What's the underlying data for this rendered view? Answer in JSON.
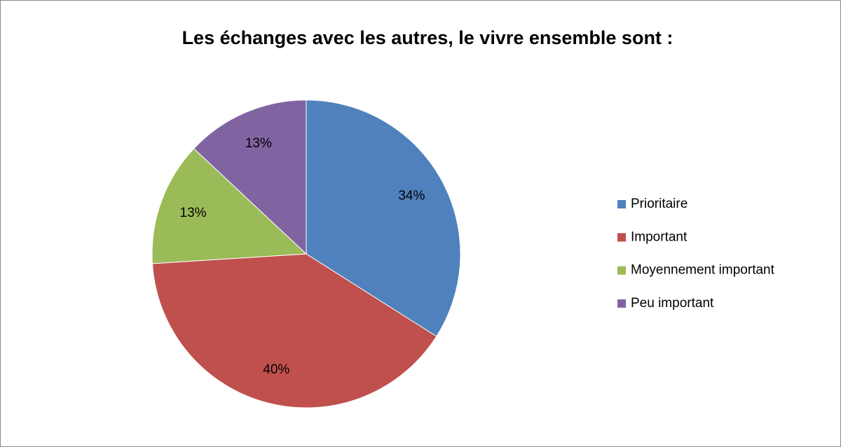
{
  "chart_data": {
    "type": "pie",
    "title": "Les échanges avec les autres, le vivre ensemble sont :",
    "categories": [
      "Prioritaire",
      "Important",
      "Moyennement important",
      "Peu important"
    ],
    "values": [
      34,
      40,
      13,
      13
    ],
    "value_labels": [
      "34%",
      "40%",
      "13%",
      "13%"
    ],
    "colors": [
      "#4f81bd",
      "#c0504d",
      "#9bbb59",
      "#8064a2"
    ],
    "legend": "right"
  }
}
